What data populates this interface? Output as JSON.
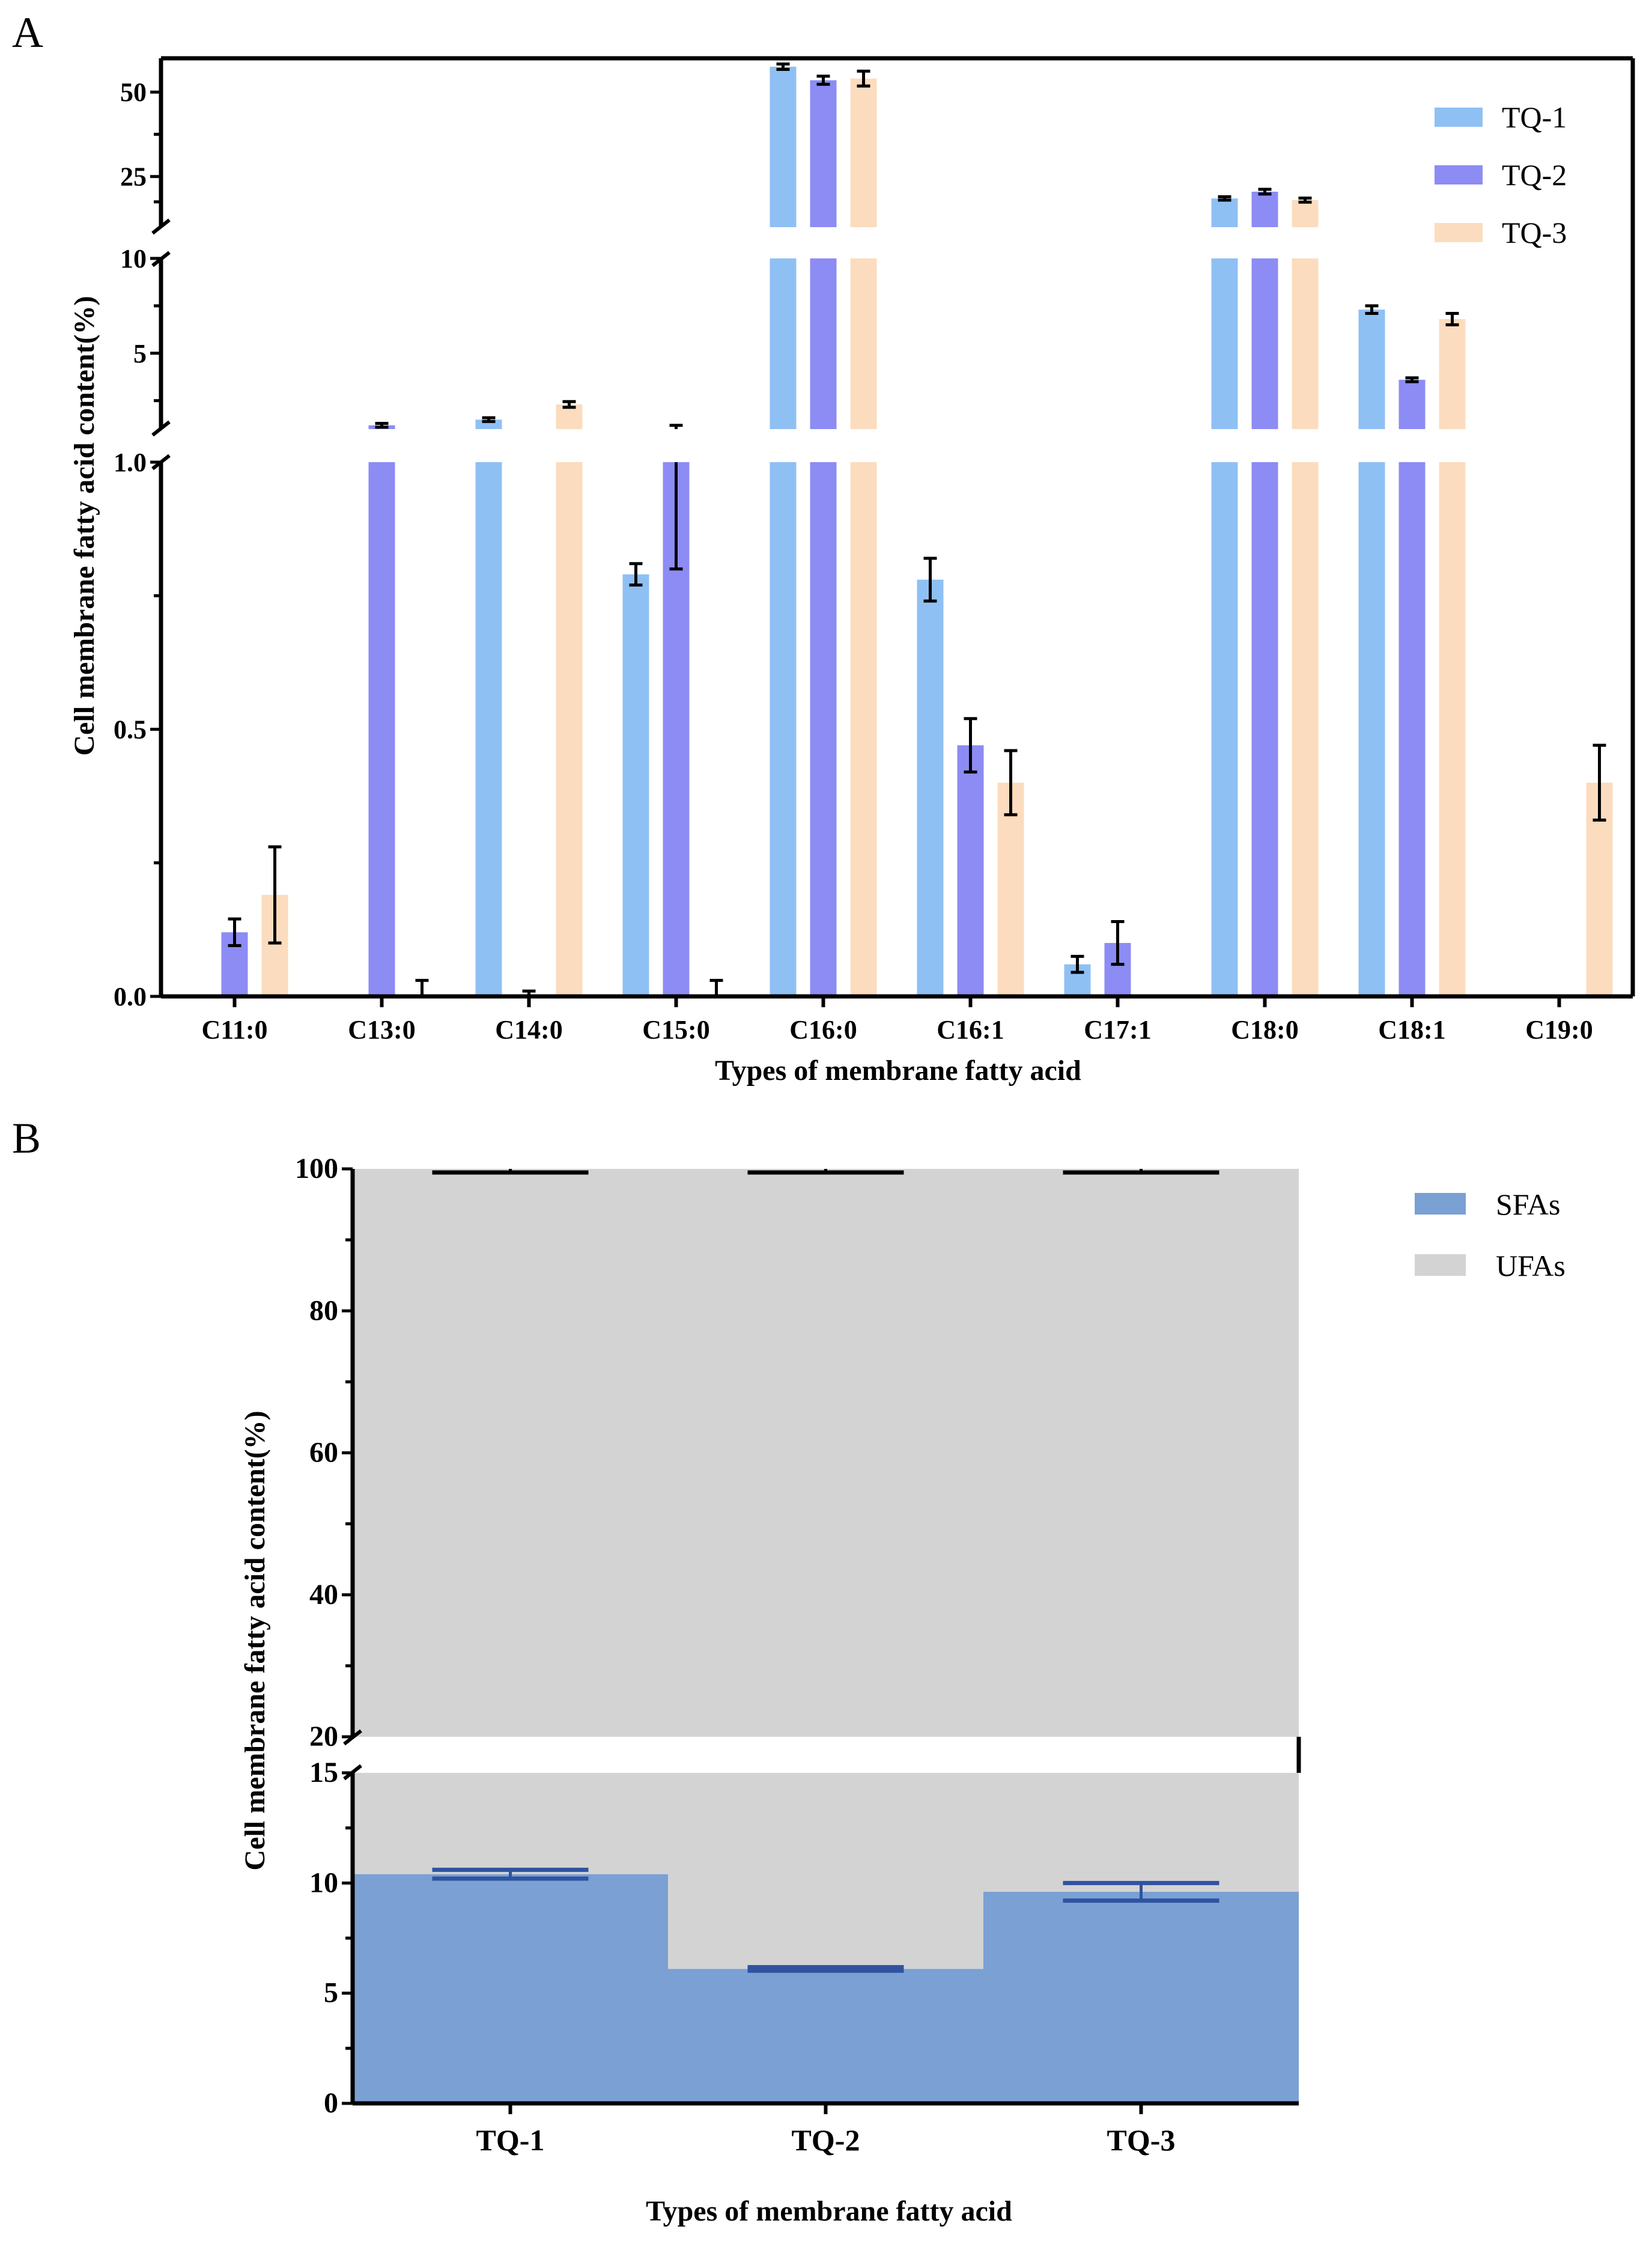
{
  "colors": {
    "TQ-1": "#8fc0f4",
    "TQ-2": "#8c8cf4",
    "TQ-3": "#fcdcbe",
    "SFAs": "#7aa0d4",
    "UFAs": "#d3d3d3",
    "sfa_error": "#2f53a0"
  },
  "chart_data": [
    {
      "panel": "A",
      "type": "bar",
      "xlabel": "Types of membrane fatty acid",
      "ylabel": "Cell membrane fatty acid content(%)",
      "categories": [
        "C11:0",
        "C13:0",
        "C14:0",
        "C15:0",
        "C16:0",
        "C16:1",
        "C17:1",
        "C18:0",
        "C18:1",
        "C19:0"
      ],
      "series": [
        {
          "name": "TQ-1",
          "values": [
            0,
            0,
            1.5,
            0.79,
            57.5,
            0.78,
            0.06,
            18.5,
            7.3,
            0
          ],
          "errors": [
            0,
            0,
            0.1,
            0.02,
            0.8,
            0.04,
            0.015,
            0.5,
            0.2,
            0
          ]
        },
        {
          "name": "TQ-2",
          "values": [
            0.12,
            1.2,
            0,
            1.0,
            53.5,
            0.47,
            0.1,
            20.5,
            3.6,
            0
          ],
          "errors": [
            0.025,
            0.1,
            0.01,
            0.2,
            1.2,
            0.05,
            0.04,
            0.7,
            0.1,
            0
          ]
        },
        {
          "name": "TQ-3",
          "values": [
            0.19,
            0,
            2.3,
            0,
            54,
            0.4,
            0,
            18,
            6.8,
            0.4
          ],
          "errors": [
            0.09,
            0.03,
            0.15,
            0.03,
            2.2,
            0.06,
            0,
            0.6,
            0.3,
            0.07
          ]
        }
      ],
      "y_segments": [
        [
          0,
          1.0
        ],
        [
          1.0,
          10
        ],
        [
          10,
          60
        ]
      ],
      "y_tick_labels": [
        "0.0",
        "0.5",
        "1.0",
        "5",
        "10",
        "25",
        "50"
      ],
      "legend": {
        "entries": [
          "TQ-1",
          "TQ-2",
          "TQ-3"
        ],
        "position": "top-right"
      }
    },
    {
      "panel": "B",
      "type": "bar",
      "stacked": true,
      "xlabel": "Types of membrane fatty acid",
      "ylabel": "Cell membrane fatty acid content(%)",
      "categories": [
        "TQ-1",
        "TQ-2",
        "TQ-3"
      ],
      "series": [
        {
          "name": "SFAs",
          "values": [
            10.4,
            6.1,
            9.6
          ],
          "errors": [
            0.2,
            0.08,
            0.4
          ]
        },
        {
          "name": "UFAs",
          "values": [
            89.6,
            93.9,
            90.4
          ],
          "errors": [
            0.15,
            0.1,
            0.2
          ]
        }
      ],
      "y_segments": [
        [
          0,
          15
        ],
        [
          20,
          100
        ]
      ],
      "y_tick_labels": [
        "0",
        "5",
        "10",
        "15",
        "20",
        "40",
        "60",
        "80",
        "100"
      ],
      "legend": {
        "entries": [
          "SFAs",
          "UFAs"
        ],
        "position": "top-right"
      }
    }
  ]
}
